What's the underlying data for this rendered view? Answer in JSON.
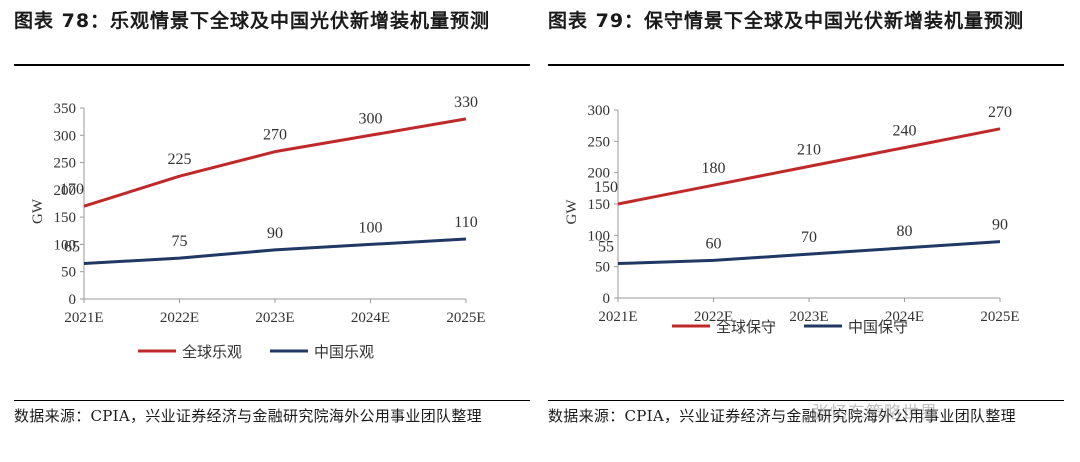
{
  "watermark": "张忆东策略世界",
  "chart_data": [
    {
      "type": "line",
      "title": "图表 78：乐观情景下全球及中国光伏新增装机量预测",
      "source": "数据来源：CPIA，兴业证券经济与金融研究院海外公用事业团队整理",
      "categories": [
        "2021E",
        "2022E",
        "2023E",
        "2024E",
        "2025E"
      ],
      "ylabel": "GW",
      "ylim": [
        0,
        350
      ],
      "yticks": [
        0,
        50,
        100,
        150,
        200,
        250,
        300,
        350
      ],
      "legend_position": "bottom",
      "series": [
        {
          "name": "全球乐观",
          "color": "#c0292a",
          "values": [
            170,
            225,
            270,
            300,
            330
          ]
        },
        {
          "name": "中国乐观",
          "color": "#1f3864",
          "values": [
            65,
            75,
            90,
            100,
            110
          ]
        }
      ]
    },
    {
      "type": "line",
      "title": "图表 79：保守情景下全球及中国光伏新增装机量预测",
      "source": "数据来源：CPIA，兴业证券经济与金融研究院海外公用事业团队整理",
      "categories": [
        "2021E",
        "2022E",
        "2023E",
        "2024E",
        "2025E"
      ],
      "ylabel": "GW",
      "ylim": [
        0,
        300
      ],
      "yticks": [
        0,
        50,
        100,
        150,
        200,
        250,
        300
      ],
      "legend_position": "bottom",
      "series": [
        {
          "name": "全球保守",
          "color": "#c0292a",
          "values": [
            150,
            180,
            210,
            240,
            270
          ]
        },
        {
          "name": "中国保守",
          "color": "#1f3864",
          "values": [
            55,
            60,
            70,
            80,
            90
          ]
        }
      ]
    }
  ]
}
